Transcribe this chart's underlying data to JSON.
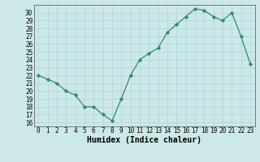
{
  "x": [
    0,
    1,
    2,
    3,
    4,
    5,
    6,
    7,
    8,
    9,
    10,
    11,
    12,
    13,
    14,
    15,
    16,
    17,
    18,
    19,
    20,
    21,
    22,
    23
  ],
  "y": [
    22,
    21.5,
    21,
    20,
    19.5,
    18,
    18,
    17,
    16.2,
    19,
    22,
    24,
    24.8,
    25.5,
    27.5,
    28.5,
    29.5,
    30.5,
    30.3,
    29.5,
    29,
    30,
    27,
    23.5
  ],
  "line_color": "#2e8b6e",
  "marker": "D",
  "marker_size": 2.2,
  "bg_color": "#cce8e8",
  "grid_color": "#aed4d4",
  "xlabel": "Humidex (Indice chaleur)",
  "ylim": [
    15.5,
    31
  ],
  "xlim": [
    -0.5,
    23.5
  ],
  "yticks": [
    16,
    17,
    18,
    19,
    20,
    21,
    22,
    23,
    24,
    25,
    26,
    27,
    28,
    29,
    30
  ],
  "xticks": [
    0,
    1,
    2,
    3,
    4,
    5,
    6,
    7,
    8,
    9,
    10,
    11,
    12,
    13,
    14,
    15,
    16,
    17,
    18,
    19,
    20,
    21,
    22,
    23
  ],
  "tick_fontsize": 5.5,
  "xlabel_fontsize": 7,
  "line_width": 0.9,
  "spine_color": "#666666"
}
